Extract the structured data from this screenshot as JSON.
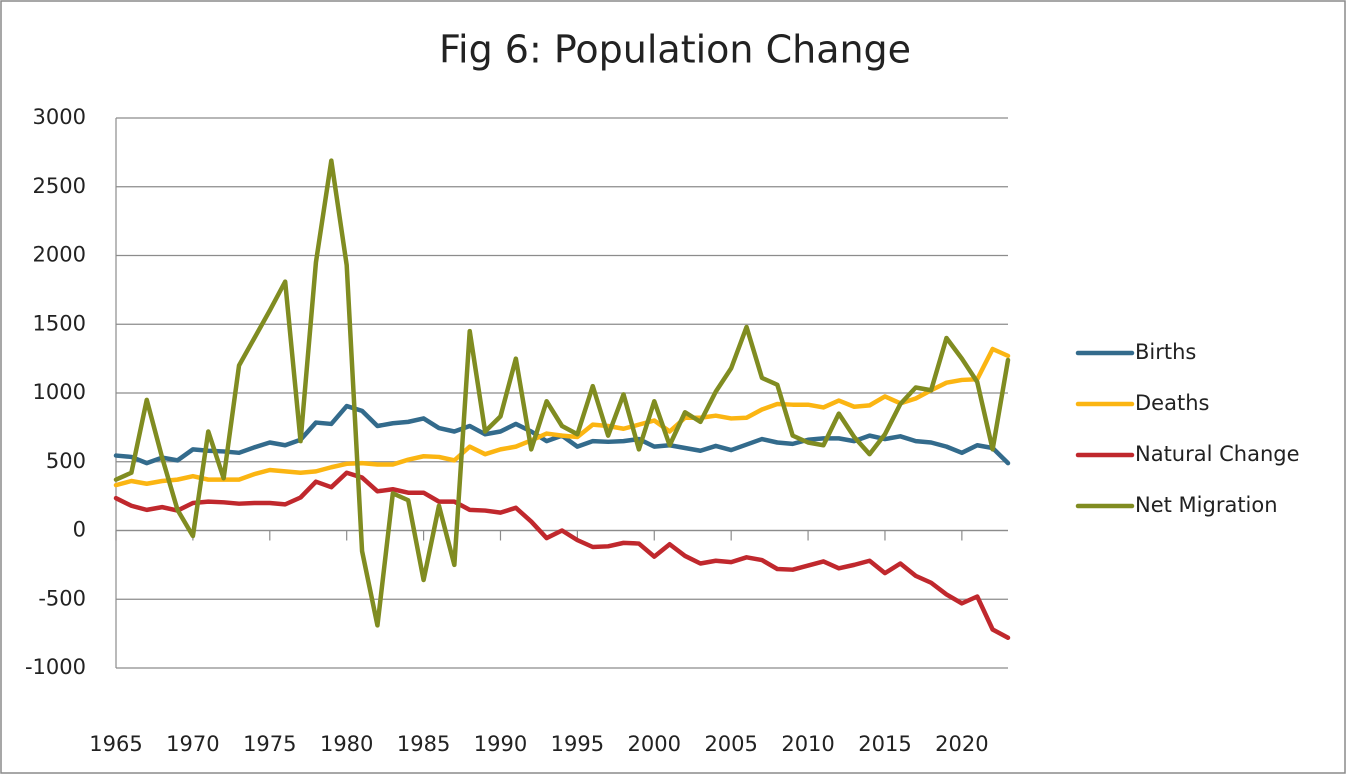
{
  "chart_data": {
    "type": "line",
    "title": "Fig 6: Population Change",
    "x": [
      1965,
      1966,
      1967,
      1968,
      1969,
      1970,
      1971,
      1972,
      1973,
      1974,
      1975,
      1976,
      1977,
      1978,
      1979,
      1980,
      1981,
      1982,
      1983,
      1984,
      1985,
      1986,
      1987,
      1988,
      1989,
      1990,
      1991,
      1992,
      1993,
      1994,
      1995,
      1996,
      1997,
      1998,
      1999,
      2000,
      2001,
      2002,
      2003,
      2004,
      2005,
      2006,
      2007,
      2008,
      2009,
      2010,
      2011,
      2012,
      2013,
      2014,
      2015,
      2016,
      2017,
      2018,
      2019,
      2020,
      2021,
      2022,
      2023
    ],
    "xlim": [
      1965,
      2023
    ],
    "xticks": [
      1965,
      1970,
      1975,
      1980,
      1985,
      1990,
      1995,
      2000,
      2005,
      2010,
      2015,
      2020
    ],
    "ylim": [
      -1000,
      3000
    ],
    "yticks": [
      -1000,
      -500,
      0,
      500,
      1000,
      1500,
      2000,
      2500,
      3000
    ],
    "grid": true,
    "legend": "right",
    "series": [
      {
        "name": "Births",
        "color": "#336b8c",
        "values": [
          545,
          535,
          490,
          530,
          510,
          590,
          580,
          575,
          565,
          605,
          640,
          620,
          660,
          785,
          775,
          905,
          870,
          760,
          780,
          790,
          815,
          745,
          720,
          760,
          700,
          720,
          775,
          720,
          650,
          690,
          610,
          650,
          645,
          650,
          665,
          610,
          620,
          600,
          580,
          615,
          585,
          625,
          665,
          640,
          630,
          660,
          670,
          670,
          650,
          690,
          665,
          685,
          650,
          640,
          610,
          565,
          620,
          600,
          490
        ]
      },
      {
        "name": "Deaths",
        "color": "#fbb512",
        "values": [
          330,
          360,
          340,
          360,
          370,
          395,
          370,
          370,
          370,
          410,
          440,
          430,
          420,
          430,
          460,
          485,
          490,
          480,
          480,
          515,
          540,
          535,
          510,
          610,
          555,
          590,
          610,
          655,
          705,
          690,
          680,
          770,
          760,
          740,
          770,
          800,
          720,
          820,
          820,
          835,
          815,
          820,
          880,
          920,
          915,
          915,
          895,
          945,
          900,
          910,
          975,
          925,
          960,
          1020,
          1075,
          1095,
          1100,
          1320,
          1270
        ]
      },
      {
        "name": "Natural Change",
        "color": "#c0282d",
        "values": [
          235,
          180,
          150,
          170,
          145,
          200,
          210,
          205,
          195,
          200,
          200,
          190,
          240,
          355,
          315,
          420,
          385,
          285,
          300,
          275,
          275,
          210,
          210,
          150,
          145,
          130,
          165,
          65,
          -55,
          0,
          -70,
          -120,
          -115,
          -90,
          -95,
          -190,
          -100,
          -185,
          -240,
          -220,
          -230,
          -195,
          -215,
          -280,
          -285,
          -255,
          -225,
          -275,
          -250,
          -220,
          -310,
          -240,
          -330,
          -380,
          -465,
          -530,
          -480,
          -720,
          -780
        ]
      },
      {
        "name": "Net Migration",
        "color": "#808c21",
        "values": [
          370,
          420,
          950,
          530,
          150,
          -40,
          720,
          380,
          1200,
          1400,
          1600,
          1810,
          650,
          1950,
          2690,
          1930,
          -150,
          -690,
          270,
          220,
          -360,
          180,
          -250,
          1450,
          720,
          830,
          1250,
          590,
          940,
          760,
          700,
          1050,
          690,
          990,
          590,
          940,
          620,
          860,
          790,
          1010,
          1180,
          1480,
          1110,
          1060,
          690,
          640,
          620,
          850,
          680,
          555,
          700,
          920,
          1040,
          1020,
          1400,
          1250,
          1080,
          590,
          1240
        ]
      }
    ]
  }
}
